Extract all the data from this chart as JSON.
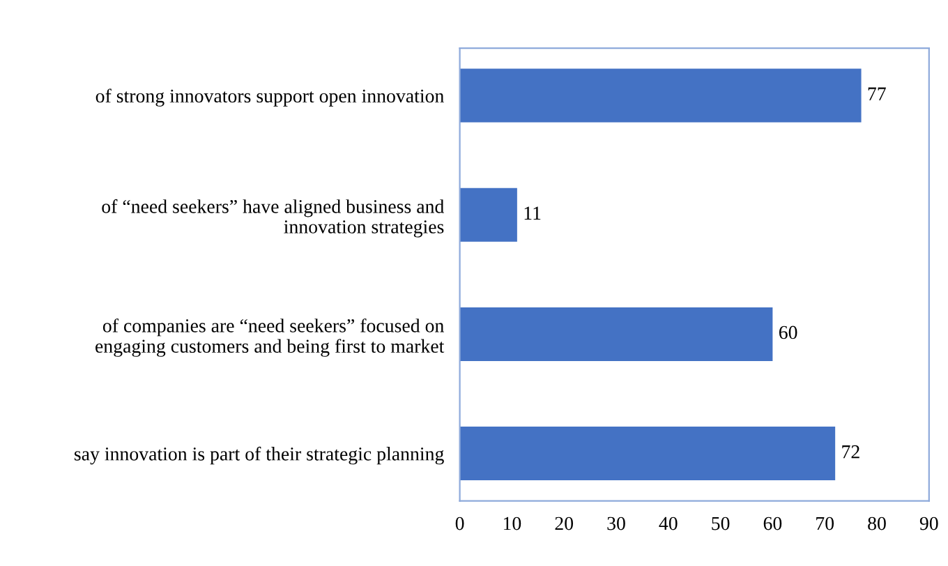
{
  "chart_data": {
    "type": "bar",
    "orientation": "horizontal",
    "categories": [
      "of strong innovators support open innovation",
      "of “need seekers” have aligned business and\ninnovation strategies",
      "of companies are “need seekers” focused on\nengaging customers and being first to market",
      "say innovation is part of their strategic planning"
    ],
    "values": [
      77,
      11,
      60,
      72
    ],
    "color": "#4472c4",
    "xlim": [
      0,
      90
    ],
    "xticks": [
      0,
      10,
      20,
      30,
      40,
      50,
      60,
      70,
      80,
      90
    ],
    "data_labels": true,
    "grid": false,
    "legend": false
  }
}
